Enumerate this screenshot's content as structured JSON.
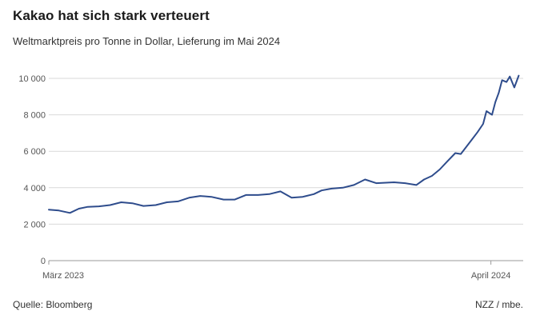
{
  "header": {
    "title": "Kakao hat sich stark verteuert",
    "subtitle": "Weltmarktpreis pro Tonne in Dollar, Lieferung im Mai 2024"
  },
  "footer": {
    "source": "Quelle: Bloomberg",
    "credit": "NZZ / mbe."
  },
  "colors": {
    "line": "#2e4c8c",
    "grid": "#d9d9d9",
    "baseline": "#9a9a9a"
  },
  "chart_data": {
    "type": "line",
    "title": "Kakao hat sich stark verteuert",
    "subtitle": "Weltmarktpreis pro Tonne in Dollar, Lieferung im Mai 2024",
    "xlabel": "",
    "ylabel": "",
    "ylim": [
      0,
      10000
    ],
    "xlim": [
      "2023-03-01",
      "2024-04-30"
    ],
    "y_ticks": [
      0,
      2000,
      4000,
      6000,
      8000,
      10000
    ],
    "y_tick_labels": [
      "0",
      "2 000",
      "4 000",
      "6 000",
      "8 000",
      "10 000"
    ],
    "x_ticks": [
      {
        "date": "2023-03-01",
        "label": "März 2023"
      },
      {
        "date": "2024-04-01",
        "label": "April 2024"
      }
    ],
    "grid": true,
    "legend": "none",
    "series": [
      {
        "x": [
          "2023-03-01",
          "2023-03-10",
          "2023-03-20",
          "2023-03-28",
          "2023-04-05",
          "2023-04-15",
          "2023-04-25",
          "2023-05-05",
          "2023-05-15",
          "2023-05-25",
          "2023-06-05",
          "2023-06-15",
          "2023-06-25",
          "2023-07-05",
          "2023-07-15",
          "2023-07-25",
          "2023-08-05",
          "2023-08-15",
          "2023-08-25",
          "2023-09-05",
          "2023-09-15",
          "2023-09-25",
          "2023-10-05",
          "2023-10-15",
          "2023-10-25",
          "2023-11-01",
          "2023-11-10",
          "2023-11-20",
          "2023-11-30",
          "2023-12-10",
          "2023-12-20",
          "2024-01-05",
          "2024-01-15",
          "2024-01-25",
          "2024-02-01",
          "2024-02-08",
          "2024-02-15",
          "2024-02-22",
          "2024-02-29",
          "2024-03-05",
          "2024-03-10",
          "2024-03-15",
          "2024-03-20",
          "2024-03-25",
          "2024-03-28",
          "2024-04-02",
          "2024-04-05",
          "2024-04-08",
          "2024-04-11",
          "2024-04-15",
          "2024-04-18",
          "2024-04-22",
          "2024-04-26"
        ],
        "values": [
          2800,
          2750,
          2620,
          2850,
          2950,
          2980,
          3050,
          3200,
          3150,
          3000,
          3050,
          3200,
          3250,
          3450,
          3550,
          3500,
          3350,
          3350,
          3600,
          3600,
          3650,
          3800,
          3450,
          3500,
          3650,
          3850,
          3950,
          4000,
          4150,
          4450,
          4250,
          4300,
          4250,
          4150,
          4450,
          4650,
          5000,
          5450,
          5900,
          5850,
          6250,
          6650,
          7050,
          7500,
          8200,
          8000,
          8700,
          9200,
          9900,
          9800,
          10100,
          9500,
          10150
        ]
      }
    ]
  }
}
